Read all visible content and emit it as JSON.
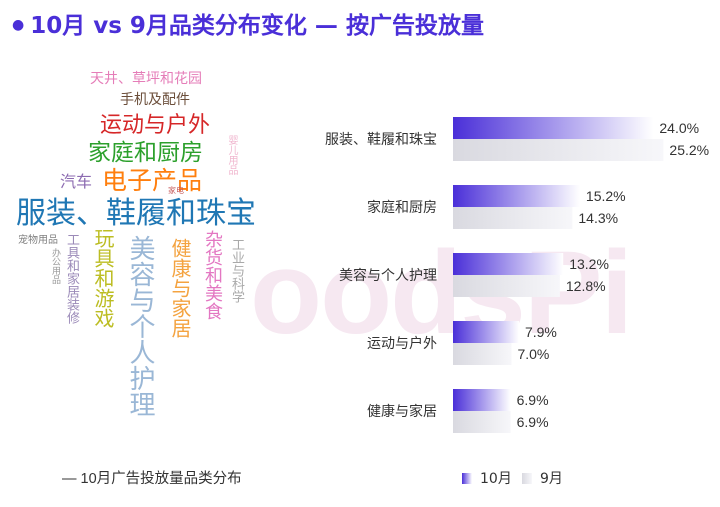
{
  "title": "10月 vs 9月品类分布变化 — 按广告投放量",
  "watermark": "oodsPi",
  "wordcloud": {
    "caption": "— 10月广告投放量品类分布",
    "words": [
      {
        "text": "天井、草坪和花园",
        "color": "#e57db8"
      },
      {
        "text": "手机及配件",
        "color": "#6b4e3a"
      },
      {
        "text": "运动与户外",
        "color": "#d62728"
      },
      {
        "text": "家庭和厨房",
        "color": "#2ca02c"
      },
      {
        "text": "电子产品",
        "color": "#ff7f0e"
      },
      {
        "text": "汽车",
        "color": "#8c6bb1"
      },
      {
        "text": "服装、鞋履和珠宝",
        "color": "#1f77b4"
      },
      {
        "text": "宠物用品",
        "color": "#7f7f7f"
      },
      {
        "text": "工具和家居装修",
        "color": "#9b8ab8"
      },
      {
        "text": "办公用品",
        "color": "#999999"
      },
      {
        "text": "玩具和游戏",
        "color": "#bcbd22"
      },
      {
        "text": "美容与个人护理",
        "color": "#9ab7d6"
      },
      {
        "text": "健康与家居",
        "color": "#f4a340"
      },
      {
        "text": "杂货和美食",
        "color": "#e377c2"
      },
      {
        "text": "工业与科学",
        "color": "#a9a9a9"
      },
      {
        "text": "婴儿用品",
        "color": "#f0b7cf"
      },
      {
        "text": "家电",
        "color": "#c75c5c"
      }
    ]
  },
  "chart_data": {
    "type": "bar",
    "orientation": "horizontal",
    "categories": [
      "服装、鞋履和珠宝",
      "家庭和厨房",
      "美容与个人护理",
      "运动与户外",
      "健康与家居"
    ],
    "series": [
      {
        "name": "10月",
        "values": [
          24.0,
          15.2,
          13.2,
          7.9,
          6.9
        ],
        "labels": [
          "24.0%",
          "15.2%",
          "13.2%",
          "7.9%",
          "6.9%"
        ],
        "color": "#4a2fd8"
      },
      {
        "name": "9月",
        "values": [
          25.2,
          14.3,
          12.8,
          7.0,
          6.9
        ],
        "labels": [
          "25.2%",
          "14.3%",
          "12.8%",
          "7.0%",
          "6.9%"
        ],
        "color": "#e4e4ea"
      }
    ],
    "legend_position": "bottom"
  }
}
